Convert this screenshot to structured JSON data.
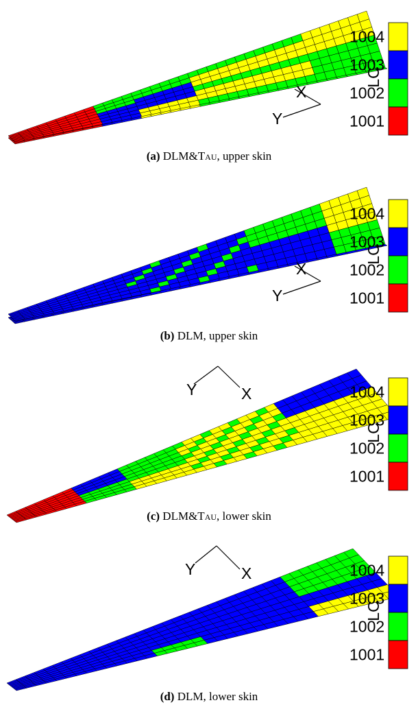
{
  "colorbar": {
    "title": "LC",
    "levels": [
      {
        "label": "1004",
        "color": "#ffff00"
      },
      {
        "label": "1003",
        "color": "#0000ff"
      },
      {
        "label": "1002",
        "color": "#00ff00"
      },
      {
        "label": "1001",
        "color": "#ff0000"
      }
    ]
  },
  "axes": {
    "x": "X",
    "y": "Y"
  },
  "panels": [
    {
      "id": "a",
      "tag": "(a)",
      "method": "DLM&Tau",
      "method_main": "DLM&T",
      "method_sc": "au",
      "skin": ", upper skin"
    },
    {
      "id": "b",
      "tag": "(b)",
      "method": "DLM",
      "method_main": "DLM",
      "method_sc": "",
      "skin": ", upper skin"
    },
    {
      "id": "c",
      "tag": "(c)",
      "method": "DLM&Tau",
      "method_main": "DLM&T",
      "method_sc": "au",
      "skin": ", lower skin"
    },
    {
      "id": "d",
      "tag": "(d)",
      "method": "DLM",
      "method_main": "DLM",
      "method_sc": "",
      "skin": ", lower skin"
    }
  ]
}
